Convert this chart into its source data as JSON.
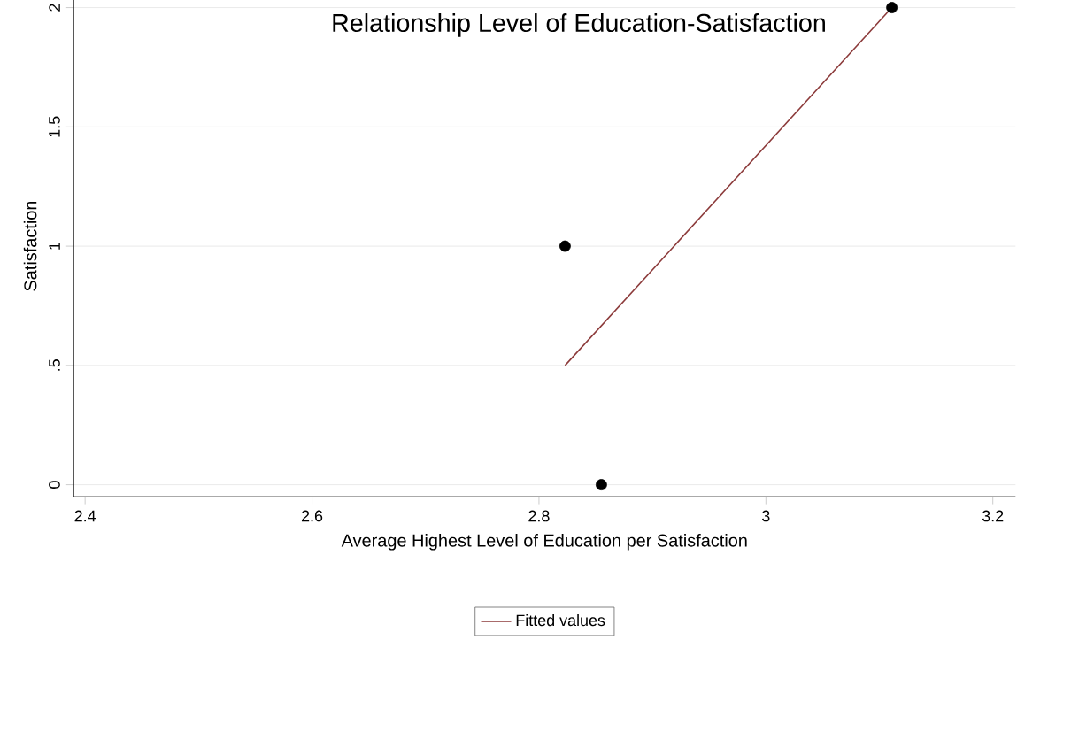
{
  "chart_data": {
    "type": "scatter",
    "title": "Relationship Level of Education-Satisfaction",
    "xlabel": "Average Highest Level of Education per Satisfaction",
    "ylabel": "Satisfaction",
    "series": [
      {
        "color": "#000000",
        "marker": "circle",
        "x": [
          2.823,
          2.855,
          3.111
        ],
        "values": [
          1,
          0,
          2
        ]
      },
      {
        "type": "line",
        "name": "Fitted values",
        "color": "#8c3a3a",
        "marker": "none",
        "x": [
          2.823,
          3.111
        ],
        "values": [
          0.5,
          2
        ]
      }
    ],
    "xlim": [
      2.39,
      3.22
    ],
    "ylim": [
      -0.05,
      2.05
    ],
    "xticks": [
      2.4,
      2.6,
      2.8,
      3,
      3.2
    ],
    "yticks": [
      0,
      {
        "value": 0.5,
        "label": ".5"
      },
      1,
      1.5,
      2
    ],
    "grid": "y",
    "legend": "bottom"
  }
}
